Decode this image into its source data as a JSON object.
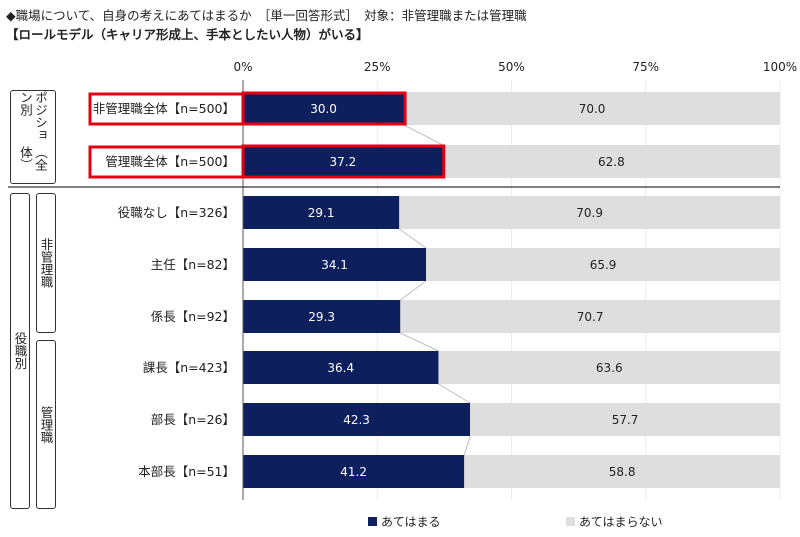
{
  "header": {
    "title": "◆職場について、自身の考えにあてはまるか　［単一回答形式］　対象：非管理職または管理職",
    "subtitle": "【ロールモデル（キャリア形成上、手本としたい人物）がいる】"
  },
  "groups": {
    "position": "ポジション別",
    "position_sub": "（全体）",
    "role": "役職別",
    "non_manager": "非管理職",
    "manager": "管理職"
  },
  "colors": {
    "yes": "#0d1f5c",
    "no": "#dedede",
    "highlight": "#e60012",
    "connector": "#bdbdbd"
  },
  "chart_data": {
    "type": "bar",
    "stacked": true,
    "orientation": "horizontal",
    "unit": "%",
    "xlim": [
      0,
      100
    ],
    "ticks": [
      "0%",
      "25%",
      "50%",
      "75%",
      "100%"
    ],
    "categories": [
      "非管理職全体【n=500】",
      "管理職全体【n=500】",
      "役職なし【n=326】",
      "主任【n=82】",
      "係長【n=92】",
      "課長【n=423】",
      "部長【n=26】",
      "本部長【n=51】"
    ],
    "series": [
      {
        "name": "あてはまる",
        "values": [
          30.0,
          37.2,
          29.1,
          34.1,
          29.3,
          36.4,
          42.3,
          41.2
        ]
      },
      {
        "name": "あてはまらない",
        "values": [
          70.0,
          62.8,
          70.9,
          65.9,
          70.7,
          63.6,
          57.7,
          58.8
        ]
      }
    ],
    "highlighted": [
      0,
      1
    ],
    "legend": "bottom"
  }
}
